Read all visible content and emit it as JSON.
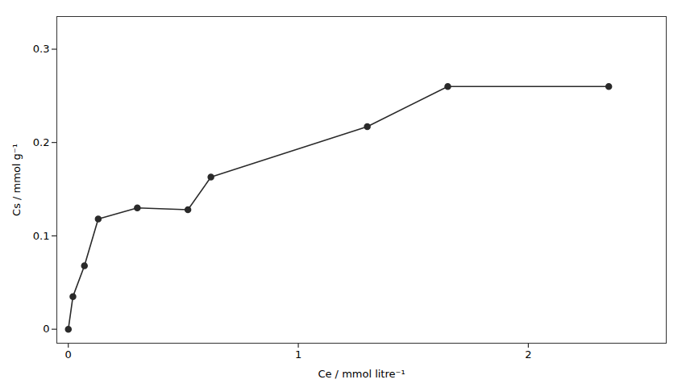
{
  "chart_data": {
    "type": "line",
    "x": [
      0.0,
      0.02,
      0.07,
      0.13,
      0.3,
      0.52,
      0.62,
      1.3,
      1.65,
      2.35
    ],
    "values": [
      0.0,
      0.035,
      0.068,
      0.118,
      0.13,
      0.128,
      0.163,
      0.217,
      0.26,
      0.26
    ],
    "x_label": "Ce / mmol litre⁻¹",
    "y_label": "Cs / mmol g⁻¹",
    "xlim": [
      -0.05,
      2.6
    ],
    "ylim": [
      -0.015,
      0.335
    ],
    "xticks": [
      0,
      1,
      2
    ],
    "yticks": [
      0,
      0.1,
      0.2,
      0.3
    ],
    "color": "#2a2a2a",
    "marker": "circle",
    "grid": false
  }
}
